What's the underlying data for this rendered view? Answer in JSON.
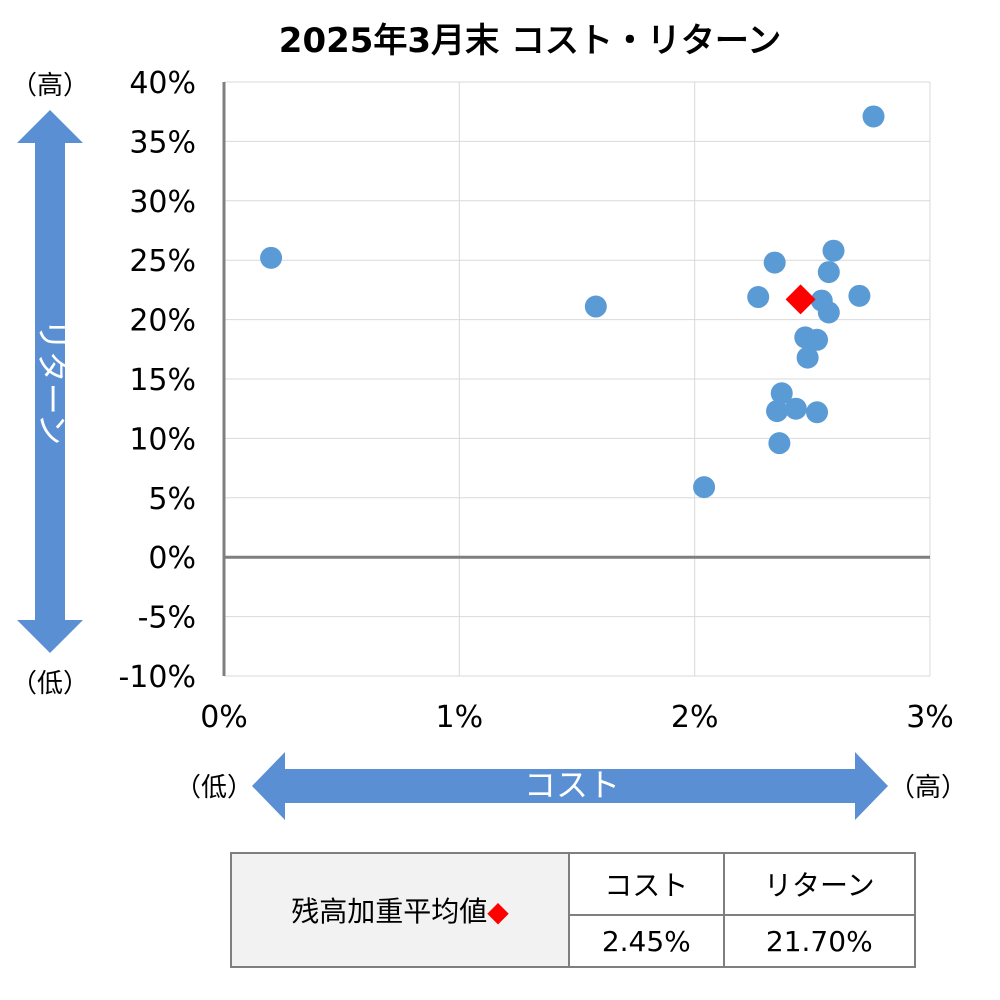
{
  "chart_data": {
    "type": "scatter",
    "title": "2025年3月末  コスト・リターン",
    "x_label": "コスト",
    "x_low_label": "（低）",
    "x_high_label": "（高）",
    "y_label": "リターン",
    "y_low_label": "（低）",
    "y_high_label": "（高）",
    "xlim": [
      0,
      3
    ],
    "ylim": [
      -10,
      40
    ],
    "x_ticks": [
      "0%",
      "1%",
      "2%",
      "3%"
    ],
    "y_ticks": [
      "40%",
      "35%",
      "30%",
      "25%",
      "20%",
      "15%",
      "10%",
      "5%",
      "0%",
      "-5%",
      "-10%"
    ],
    "grid": true,
    "units": "%",
    "point_color": "#5b9bd5",
    "points": [
      {
        "x": 0.2,
        "y": 25.2
      },
      {
        "x": 1.58,
        "y": 21.1
      },
      {
        "x": 2.04,
        "y": 5.9
      },
      {
        "x": 2.27,
        "y": 21.9
      },
      {
        "x": 2.34,
        "y": 24.8
      },
      {
        "x": 2.35,
        "y": 12.3
      },
      {
        "x": 2.37,
        "y": 13.8
      },
      {
        "x": 2.36,
        "y": 9.6
      },
      {
        "x": 2.43,
        "y": 12.5
      },
      {
        "x": 2.47,
        "y": 18.5
      },
      {
        "x": 2.48,
        "y": 16.8
      },
      {
        "x": 2.52,
        "y": 18.3
      },
      {
        "x": 2.52,
        "y": 12.2
      },
      {
        "x": 2.54,
        "y": 21.6
      },
      {
        "x": 2.57,
        "y": 20.6
      },
      {
        "x": 2.57,
        "y": 24.0
      },
      {
        "x": 2.59,
        "y": 25.8
      },
      {
        "x": 2.7,
        "y": 22.0
      },
      {
        "x": 2.76,
        "y": 37.1
      }
    ],
    "weighted_average": {
      "x": 2.45,
      "y": 21.7,
      "color": "#ff0000",
      "marker": "diamond"
    }
  },
  "summary_table": {
    "label": "残高加重平均値",
    "marker_glyph": "◆",
    "cost_header": "コスト",
    "return_header": "リターン",
    "cost_value": "2.45%",
    "return_value": "21.70%"
  }
}
